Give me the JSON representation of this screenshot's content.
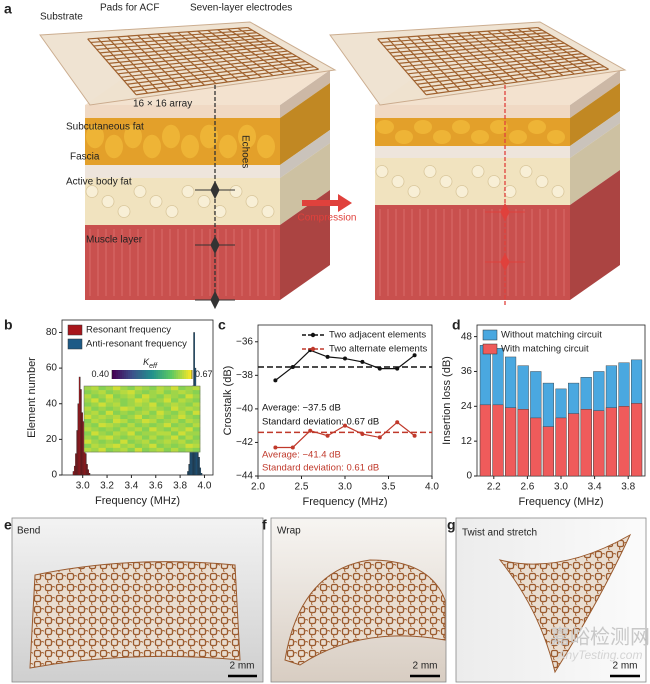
{
  "panel_a": {
    "letter": "a",
    "substrate": "Substrate",
    "pads": "Pads for ACF",
    "electrodes": "Seven-layer electrodes",
    "array": "16 × 16 array",
    "subcutaneous_fat": "Subcutaneous fat",
    "fascia": "Fascia",
    "echoes": "Echoes",
    "active_fat": "Active body fat",
    "muscle": "Muscle layer",
    "compression": "Compression"
  },
  "panel_e": {
    "letter": "e",
    "caption": "Bend",
    "scale": "2 mm"
  },
  "panel_f": {
    "letter": "f",
    "caption": "Wrap",
    "scale": "2 mm"
  },
  "panel_g": {
    "letter": "g",
    "caption": "Twist and stretch",
    "scale": "2 mm"
  },
  "watermark": {
    "text": "嘉峪检测网",
    "url": "AnyTesting.com"
  },
  "chart_data": [
    {
      "type": "histogram",
      "panel": "b",
      "xlabel": "Frequency (MHz)",
      "ylabel": "Element number",
      "xlim": [
        2.83,
        4.07
      ],
      "xticks": [
        {
          "value": 3.0,
          "label": "3.0"
        },
        3.2,
        3.4,
        3.6,
        3.8,
        {
          "value": 4.0,
          "label": "4.0"
        }
      ],
      "ylim": [
        0,
        87
      ],
      "yticks": [
        0,
        20,
        40,
        60,
        80
      ],
      "legend": "top-left",
      "series": [
        {
          "name": "Resonant frequency",
          "color": "#a8161c",
          "bins": [
            2.92,
            2.93,
            2.94,
            2.95,
            2.96,
            2.97,
            2.98,
            2.99,
            3.0,
            3.01,
            3.02,
            3.03,
            3.04,
            3.05,
            3.06
          ],
          "values": [
            2,
            5,
            12,
            25,
            40,
            55,
            48,
            35,
            30,
            22,
            12,
            6,
            3,
            1
          ]
        },
        {
          "name": "Anti-resonant frequency",
          "color": "#1d5a86",
          "bins": [
            3.86,
            3.87,
            3.88,
            3.89,
            3.9,
            3.91,
            3.92,
            3.93,
            3.94,
            3.95,
            3.96,
            3.97,
            3.98
          ],
          "values": [
            2,
            6,
            15,
            30,
            50,
            80,
            60,
            35,
            20,
            10,
            4,
            1
          ]
        }
      ],
      "inset": {
        "type": "heatmap",
        "colorbar_label": "K",
        "colorbar_label_sub": "eff",
        "colorbar_lim": [
          0.4,
          0.67
        ],
        "colorbar_ticks": [
          {
            "value": 0.4,
            "label": "0.40"
          },
          0.67
        ],
        "values": [
          [
            0.63,
            0.64,
            0.62,
            0.63,
            0.65,
            0.63,
            0.62,
            0.64,
            0.63,
            0.62,
            0.64,
            0.63,
            0.65,
            0.62,
            0.63,
            0.64
          ],
          [
            0.62,
            0.63,
            0.64,
            0.62,
            0.63,
            0.64,
            0.65,
            0.63,
            0.62,
            0.63,
            0.64,
            0.62,
            0.63,
            0.64,
            0.63,
            0.62
          ],
          [
            0.64,
            0.62,
            0.63,
            0.65,
            0.62,
            0.63,
            0.64,
            0.62,
            0.65,
            0.63,
            0.62,
            0.64,
            0.63,
            0.62,
            0.65,
            0.63
          ],
          [
            0.63,
            0.65,
            0.62,
            0.64,
            0.63,
            0.62,
            0.63,
            0.65,
            0.64,
            0.62,
            0.63,
            0.65,
            0.62,
            0.64,
            0.63,
            0.62
          ],
          [
            0.62,
            0.63,
            0.65,
            0.63,
            0.64,
            0.62,
            0.63,
            0.64,
            0.63,
            0.65,
            0.62,
            0.63,
            0.64,
            0.63,
            0.62,
            0.64
          ],
          [
            0.64,
            0.62,
            0.63,
            0.62,
            0.63,
            0.65,
            0.64,
            0.62,
            0.63,
            0.64,
            0.63,
            0.62,
            0.65,
            0.63,
            0.64,
            0.63
          ],
          [
            0.63,
            0.64,
            0.62,
            0.65,
            0.62,
            0.63,
            0.62,
            0.63,
            0.64,
            0.62,
            0.65,
            0.63,
            0.62,
            0.64,
            0.62,
            0.65
          ],
          [
            0.65,
            0.63,
            0.64,
            0.63,
            0.64,
            0.62,
            0.63,
            0.65,
            0.62,
            0.63,
            0.64,
            0.62,
            0.63,
            0.65,
            0.63,
            0.62
          ],
          [
            0.62,
            0.64,
            0.63,
            0.62,
            0.65,
            0.64,
            0.62,
            0.63,
            0.65,
            0.64,
            0.62,
            0.63,
            0.64,
            0.62,
            0.64,
            0.63
          ],
          [
            0.63,
            0.62,
            0.65,
            0.64,
            0.63,
            0.62,
            0.64,
            0.62,
            0.63,
            0.62,
            0.63,
            0.65,
            0.62,
            0.63,
            0.62,
            0.64
          ],
          [
            0.64,
            0.63,
            0.62,
            0.63,
            0.62,
            0.64,
            0.63,
            0.64,
            0.62,
            0.65,
            0.63,
            0.62,
            0.64,
            0.63,
            0.65,
            0.62
          ],
          [
            0.62,
            0.65,
            0.63,
            0.62,
            0.64,
            0.63,
            0.65,
            0.62,
            0.63,
            0.63,
            0.64,
            0.64,
            0.62,
            0.65,
            0.63,
            0.63
          ],
          [
            0.63,
            0.62,
            0.64,
            0.65,
            0.63,
            0.62,
            0.63,
            0.64,
            0.62,
            0.64,
            0.62,
            0.63,
            0.65,
            0.62,
            0.64,
            0.62
          ],
          [
            0.65,
            0.63,
            0.62,
            0.63,
            0.62,
            0.65,
            0.62,
            0.63,
            0.64,
            0.62,
            0.63,
            0.64,
            0.63,
            0.64,
            0.62,
            0.63
          ],
          [
            0.62,
            0.64,
            0.63,
            0.64,
            0.65,
            0.63,
            0.64,
            0.62,
            0.63,
            0.65,
            0.62,
            0.63,
            0.62,
            0.63,
            0.65,
            0.64
          ],
          [
            0.64,
            0.63,
            0.65,
            0.62,
            0.63,
            0.64,
            0.62,
            0.65,
            0.62,
            0.63,
            0.64,
            0.62,
            0.64,
            0.62,
            0.63,
            0.62
          ]
        ]
      }
    },
    {
      "type": "line",
      "panel": "c",
      "xlabel": "Frequency (MHz)",
      "ylabel": "Crosstalk (dB)",
      "xlim": [
        2.0,
        4.0
      ],
      "xticks": [
        {
          "value": 2.0,
          "label": "2.0"
        },
        2.5,
        {
          "value": 3.0,
          "label": "3.0"
        },
        3.5,
        {
          "value": 4.0,
          "label": "4.0"
        }
      ],
      "ylim": [
        -44,
        -35
      ],
      "yticks": [
        {
          "value": -36,
          "label": "−36"
        },
        {
          "value": -38,
          "label": "−38"
        },
        {
          "value": -40,
          "label": "−40"
        },
        {
          "value": -42,
          "label": "−42"
        },
        {
          "value": -44,
          "label": "−44"
        }
      ],
      "legend": "top-right",
      "x": [
        2.2,
        2.4,
        2.6,
        2.8,
        3.0,
        3.2,
        3.4,
        3.6,
        3.8
      ],
      "series": [
        {
          "name": "Two adjacent elements",
          "color": "#111111",
          "values": [
            -38.3,
            -37.5,
            -36.5,
            -36.9,
            -37.0,
            -37.2,
            -37.6,
            -37.6,
            -36.8
          ]
        },
        {
          "name": "Two alternate elements",
          "color": "#c0392b",
          "values": [
            -42.3,
            -42.3,
            -41.3,
            -41.6,
            -41.0,
            -41.5,
            -41.7,
            -40.8,
            -41.6
          ]
        }
      ],
      "reference_lines": [
        {
          "value": -37.5,
          "color": "#111111"
        },
        {
          "value": -41.4,
          "color": "#c0392b"
        }
      ],
      "annotations": [
        {
          "text": "Average: −37.5 dB",
          "color": "#111111"
        },
        {
          "text": "Standard deviation: 0.67 dB",
          "color": "#111111"
        },
        {
          "text": "Average: −41.4 dB",
          "color": "#c0392b"
        },
        {
          "text": "Standard deviation: 0.61 dB",
          "color": "#c0392b"
        }
      ]
    },
    {
      "type": "bar",
      "panel": "d",
      "barmode": "overlay",
      "xlabel": "Frequency (MHz)",
      "ylabel": "Insertion loss (dB)",
      "xlim": [
        2.0,
        4.0
      ],
      "xticks": [
        2.2,
        2.6,
        {
          "value": 3.0,
          "label": "3.0"
        },
        3.4,
        3.8
      ],
      "ylim": [
        0,
        52
      ],
      "yticks": [
        0,
        12,
        24,
        36,
        48
      ],
      "legend": "top-left",
      "x": [
        2.1,
        2.25,
        2.4,
        2.55,
        2.7,
        2.85,
        3.0,
        3.15,
        3.3,
        3.45,
        3.6,
        3.75,
        3.9
      ],
      "series": [
        {
          "name": "Without matching circuit",
          "color": "#4aa8e0",
          "values": [
            45,
            44,
            41,
            38,
            36,
            32,
            30,
            32,
            34,
            36,
            38,
            39,
            40
          ]
        },
        {
          "name": "With matching circuit",
          "color": "#ef5b5b",
          "values": [
            24.5,
            24.5,
            23.5,
            23,
            20,
            17,
            20,
            21.5,
            23,
            22.5,
            23.5,
            24,
            25
          ]
        }
      ]
    }
  ]
}
